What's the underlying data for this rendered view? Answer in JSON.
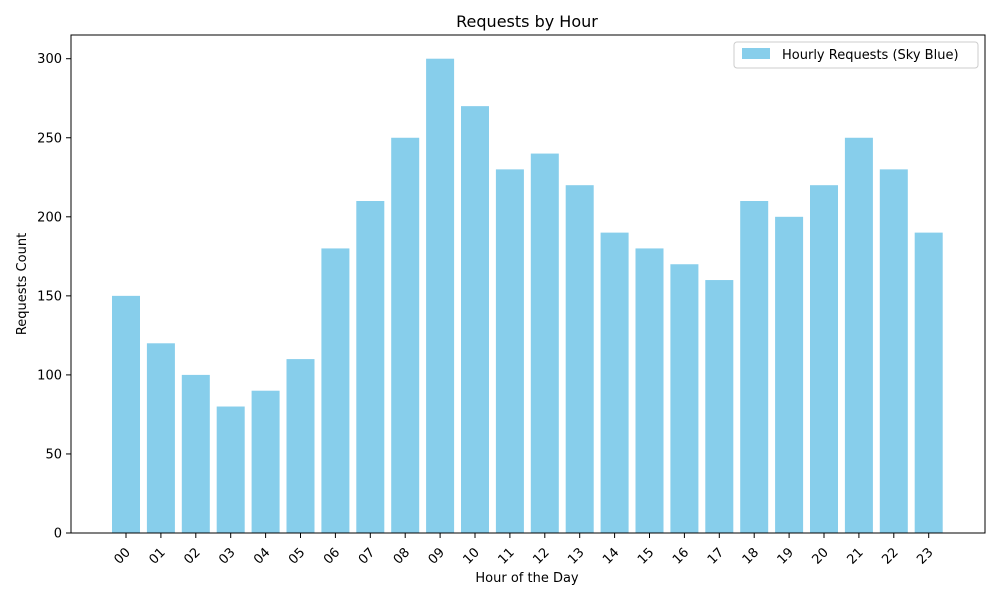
{
  "chart_data": {
    "type": "bar",
    "title": "Requests by Hour",
    "xlabel": "Hour of the Day",
    "ylabel": "Requests Count",
    "categories": [
      "00",
      "01",
      "02",
      "03",
      "04",
      "05",
      "06",
      "07",
      "08",
      "09",
      "10",
      "11",
      "12",
      "13",
      "14",
      "15",
      "16",
      "17",
      "18",
      "19",
      "20",
      "21",
      "22",
      "23"
    ],
    "series": [
      {
        "name": "Hourly Requests (Sky Blue)",
        "color": "#87ceeb",
        "values": [
          150,
          120,
          100,
          80,
          90,
          110,
          180,
          210,
          250,
          300,
          270,
          230,
          240,
          220,
          190,
          180,
          170,
          160,
          210,
          200,
          220,
          250,
          230,
          190
        ]
      }
    ],
    "ylim": [
      0,
      315
    ],
    "yticks": [
      0,
      50,
      100,
      150,
      200,
      250,
      300
    ],
    "grid": false,
    "legend_position": "top-right"
  }
}
